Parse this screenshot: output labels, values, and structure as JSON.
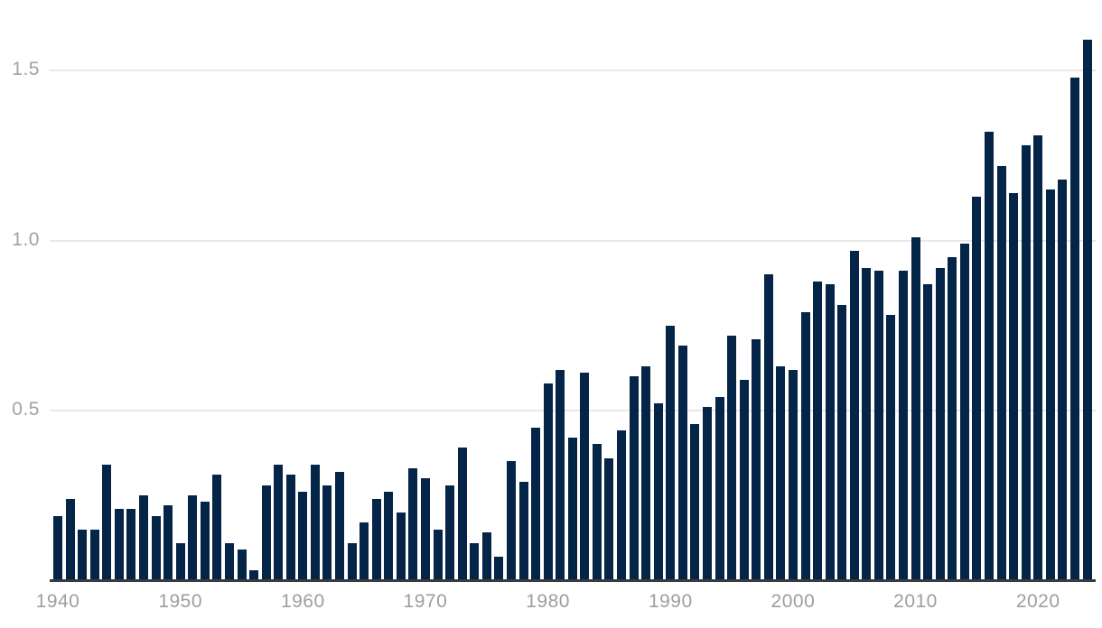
{
  "chart_data": {
    "type": "bar",
    "title": "",
    "xlabel": "",
    "ylabel": "",
    "x_tick_labels": [
      "1940",
      "1950",
      "1960",
      "1970",
      "1980",
      "1990",
      "2000",
      "2010",
      "2020"
    ],
    "y_tick_labels": [
      "0.5",
      "1.0",
      "1.5"
    ],
    "y_ticks": [
      0.5,
      1.0,
      1.5
    ],
    "ylim": [
      0,
      1.65
    ],
    "grid": "horizontal-only",
    "legend": "none",
    "years": [
      1940,
      1941,
      1942,
      1943,
      1944,
      1945,
      1946,
      1947,
      1948,
      1949,
      1950,
      1951,
      1952,
      1953,
      1954,
      1955,
      1956,
      1957,
      1958,
      1959,
      1960,
      1961,
      1962,
      1963,
      1964,
      1965,
      1966,
      1967,
      1968,
      1969,
      1970,
      1971,
      1972,
      1973,
      1974,
      1975,
      1976,
      1977,
      1978,
      1979,
      1980,
      1981,
      1982,
      1983,
      1984,
      1985,
      1986,
      1987,
      1988,
      1989,
      1990,
      1991,
      1992,
      1993,
      1994,
      1995,
      1996,
      1997,
      1998,
      1999,
      2000,
      2001,
      2002,
      2003,
      2004,
      2005,
      2006,
      2007,
      2008,
      2009,
      2010,
      2011,
      2012,
      2013,
      2014,
      2015,
      2016,
      2017,
      2018,
      2019,
      2020,
      2021,
      2022,
      2023,
      2024
    ],
    "values": [
      0.19,
      0.24,
      0.15,
      0.15,
      0.34,
      0.21,
      0.21,
      0.25,
      0.19,
      0.22,
      0.11,
      0.25,
      0.23,
      0.31,
      0.11,
      0.09,
      0.03,
      0.28,
      0.34,
      0.31,
      0.26,
      0.34,
      0.28,
      0.32,
      0.11,
      0.17,
      0.24,
      0.26,
      0.2,
      0.33,
      0.3,
      0.15,
      0.28,
      0.39,
      0.11,
      0.14,
      0.07,
      0.35,
      0.29,
      0.45,
      0.58,
      0.62,
      0.42,
      0.61,
      0.4,
      0.36,
      0.44,
      0.6,
      0.63,
      0.52,
      0.75,
      0.69,
      0.46,
      0.51,
      0.54,
      0.72,
      0.59,
      0.71,
      0.9,
      0.63,
      0.62,
      0.79,
      0.88,
      0.87,
      0.81,
      0.97,
      0.92,
      0.91,
      0.78,
      0.91,
      1.01,
      0.87,
      0.92,
      0.95,
      0.99,
      1.13,
      1.32,
      1.22,
      1.14,
      1.28,
      1.31,
      1.15,
      1.18,
      1.48,
      1.59
    ],
    "colors": {
      "bar": "#052548",
      "gridline": "#e8e8e8",
      "axis_line": "#3a3a3a",
      "tick_text": "#9e9e9e"
    }
  }
}
